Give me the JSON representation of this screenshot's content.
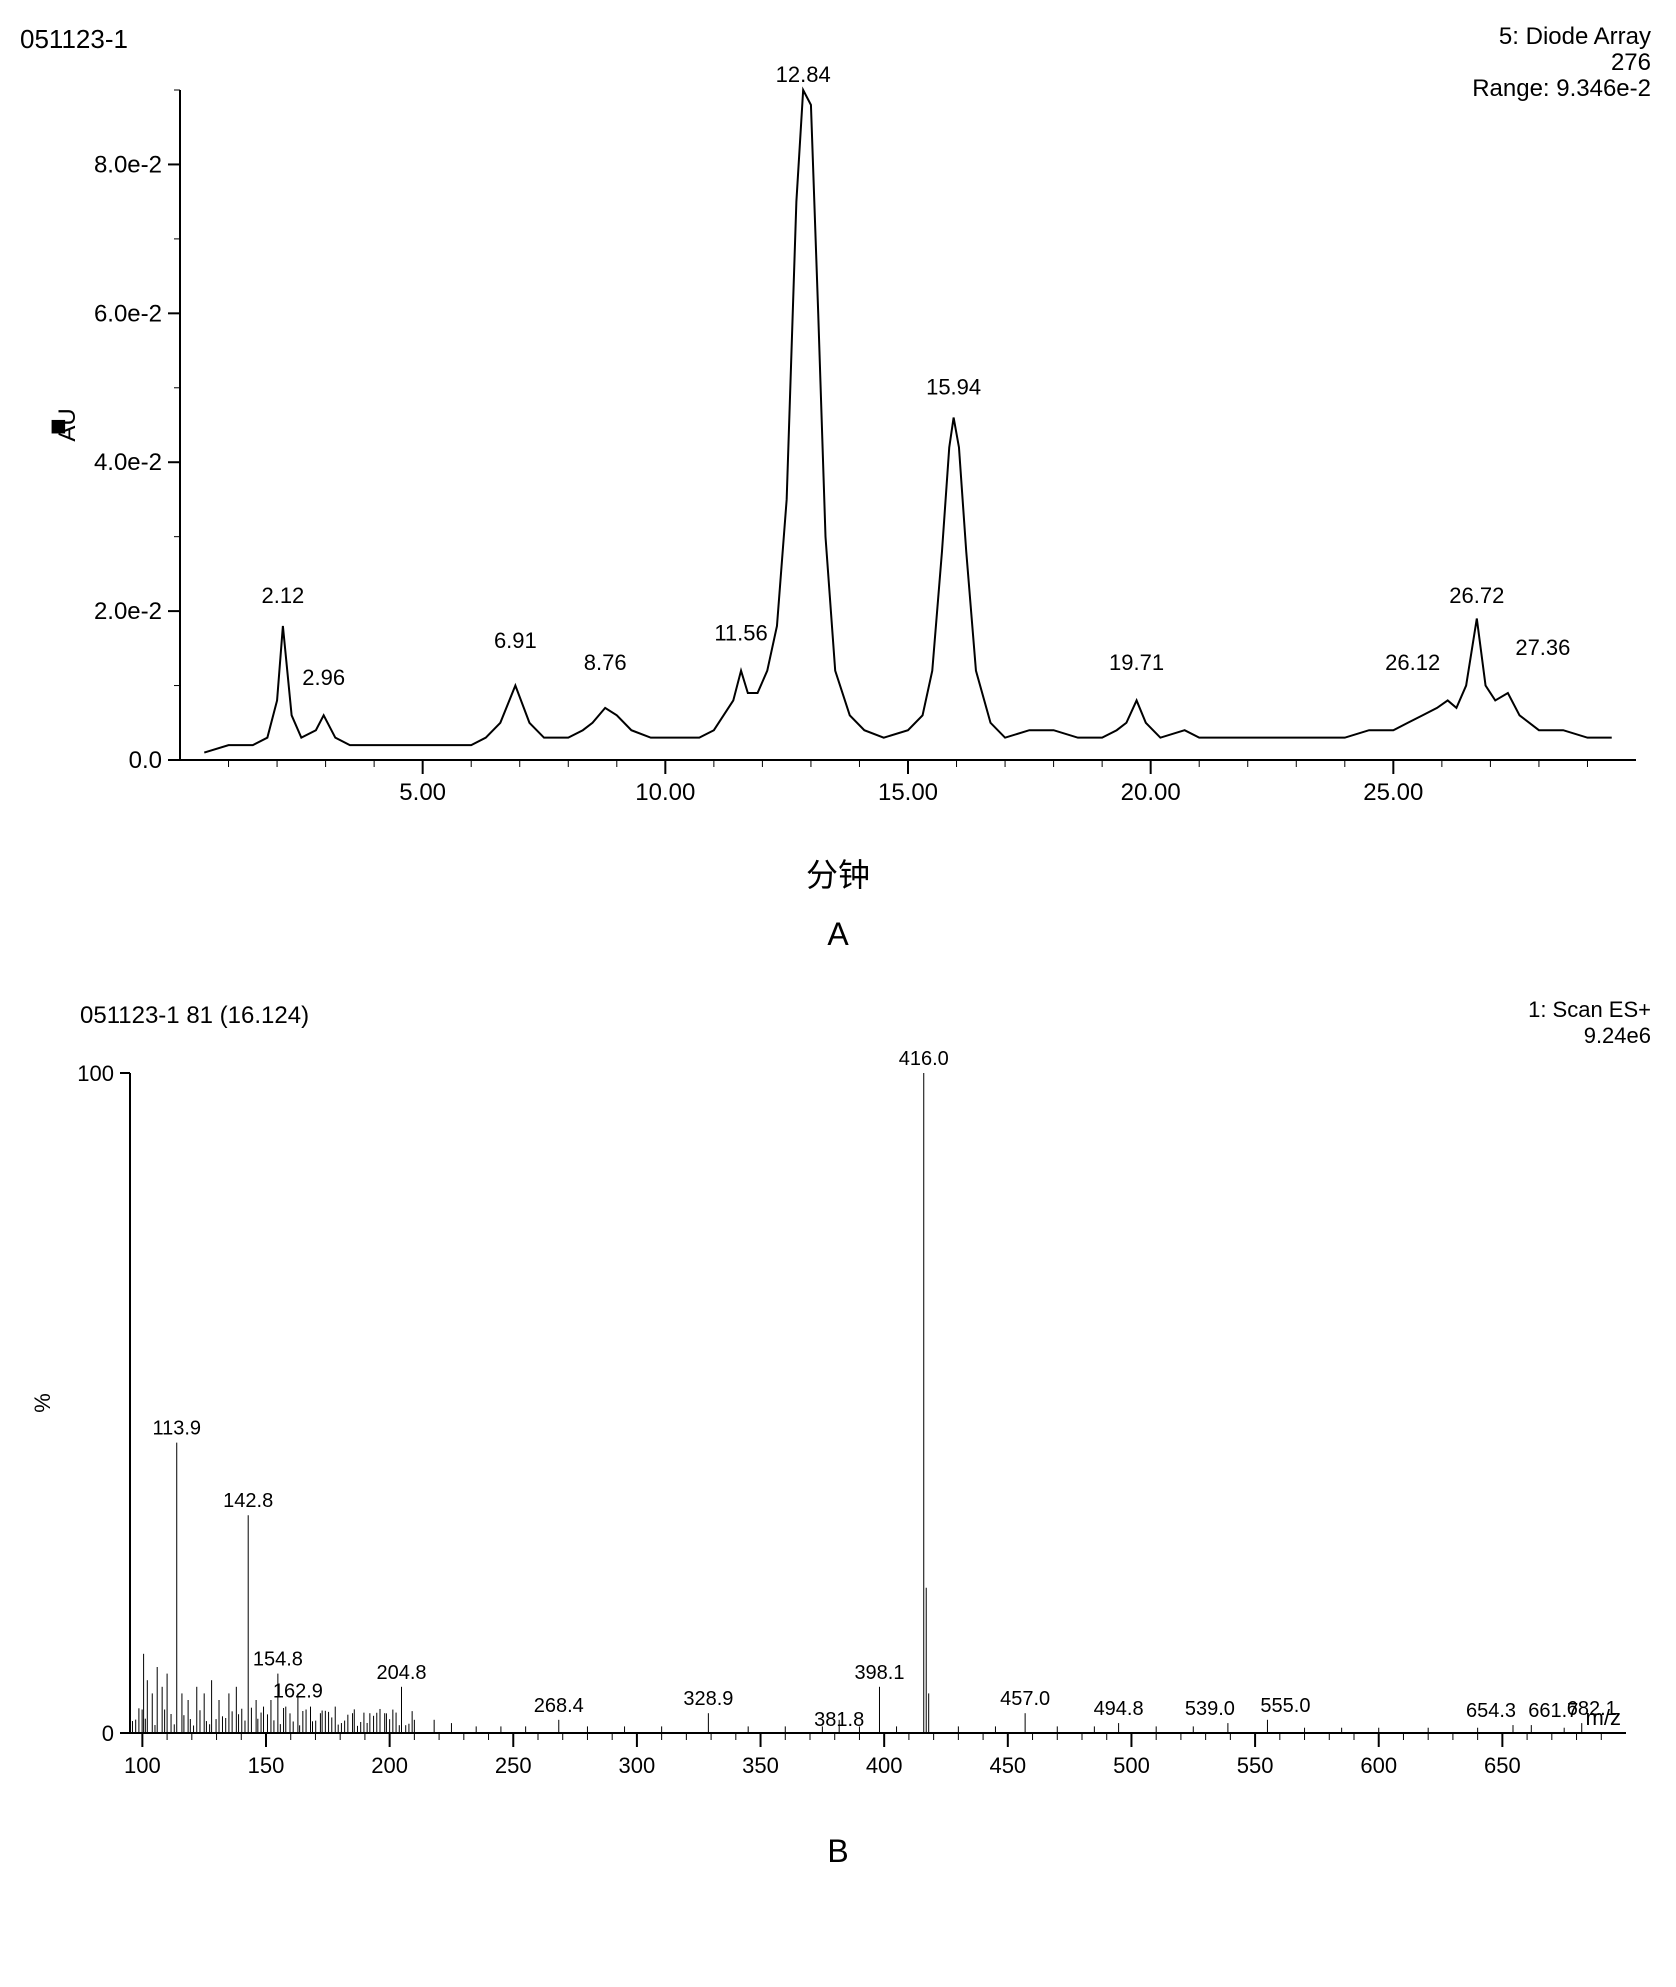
{
  "chartA": {
    "type": "chromatogram-line",
    "sample_id": "051123-1",
    "detector_line1": "5: Diode Array",
    "detector_line2": "276",
    "detector_range": "Range: 9.346e-2",
    "ylabel_icon": "■",
    "ylabel": "AU",
    "xlabel": "分钟",
    "panel_label": "A",
    "xlim": [
      0,
      30
    ],
    "ylim": [
      0,
      0.09
    ],
    "xtick_major": [
      5.0,
      10.0,
      15.0,
      20.0,
      25.0
    ],
    "ytick_labels": [
      "0.0",
      "2.0e-2",
      "4.0e-2",
      "6.0e-2",
      "8.0e-2"
    ],
    "ytick_values": [
      0,
      0.02,
      0.04,
      0.06,
      0.08
    ],
    "line_color": "#000000",
    "line_width": 2,
    "background_color": "#ffffff",
    "tick_color": "#000000",
    "title_fontsize": 26,
    "label_fontsize": 24,
    "tick_fontsize": 24,
    "peak_labels": [
      {
        "x": 2.12,
        "y_offset": 0.02,
        "text": "2.12"
      },
      {
        "x": 2.96,
        "y_offset": 0.009,
        "text": "2.96"
      },
      {
        "x": 6.91,
        "y_offset": 0.014,
        "text": "6.91"
      },
      {
        "x": 8.76,
        "y_offset": 0.011,
        "text": "8.76"
      },
      {
        "x": 11.56,
        "y_offset": 0.015,
        "text": "11.56"
      },
      {
        "x": 12.84,
        "y_offset": 0.094,
        "text": "12.84"
      },
      {
        "x": 15.94,
        "y_offset": 0.048,
        "text": "15.94"
      },
      {
        "x": 19.71,
        "y_offset": 0.011,
        "text": "19.71"
      },
      {
        "x": 26.12,
        "y_offset": 0.011,
        "text": "26.12",
        "dx": -35
      },
      {
        "x": 26.72,
        "y_offset": 0.02,
        "text": "26.72"
      },
      {
        "x": 27.36,
        "y_offset": 0.013,
        "text": "27.36",
        "dx": 35
      }
    ],
    "trace": [
      [
        0.5,
        0.001
      ],
      [
        1.0,
        0.002
      ],
      [
        1.5,
        0.002
      ],
      [
        1.8,
        0.003
      ],
      [
        2.0,
        0.008
      ],
      [
        2.12,
        0.018
      ],
      [
        2.3,
        0.006
      ],
      [
        2.5,
        0.003
      ],
      [
        2.8,
        0.004
      ],
      [
        2.96,
        0.006
      ],
      [
        3.2,
        0.003
      ],
      [
        3.5,
        0.002
      ],
      [
        4.0,
        0.002
      ],
      [
        5.0,
        0.002
      ],
      [
        5.5,
        0.002
      ],
      [
        6.0,
        0.002
      ],
      [
        6.3,
        0.003
      ],
      [
        6.6,
        0.005
      ],
      [
        6.91,
        0.01
      ],
      [
        7.2,
        0.005
      ],
      [
        7.5,
        0.003
      ],
      [
        8.0,
        0.003
      ],
      [
        8.3,
        0.004
      ],
      [
        8.5,
        0.005
      ],
      [
        8.76,
        0.007
      ],
      [
        9.0,
        0.006
      ],
      [
        9.3,
        0.004
      ],
      [
        9.7,
        0.003
      ],
      [
        10.2,
        0.003
      ],
      [
        10.7,
        0.003
      ],
      [
        11.0,
        0.004
      ],
      [
        11.2,
        0.006
      ],
      [
        11.4,
        0.008
      ],
      [
        11.56,
        0.012
      ],
      [
        11.7,
        0.009
      ],
      [
        11.9,
        0.009
      ],
      [
        12.1,
        0.012
      ],
      [
        12.3,
        0.018
      ],
      [
        12.5,
        0.035
      ],
      [
        12.7,
        0.075
      ],
      [
        12.84,
        0.093
      ],
      [
        13.0,
        0.088
      ],
      [
        13.15,
        0.06
      ],
      [
        13.3,
        0.03
      ],
      [
        13.5,
        0.012
      ],
      [
        13.8,
        0.006
      ],
      [
        14.1,
        0.004
      ],
      [
        14.5,
        0.003
      ],
      [
        15.0,
        0.004
      ],
      [
        15.3,
        0.006
      ],
      [
        15.5,
        0.012
      ],
      [
        15.7,
        0.028
      ],
      [
        15.85,
        0.042
      ],
      [
        15.94,
        0.046
      ],
      [
        16.05,
        0.042
      ],
      [
        16.2,
        0.028
      ],
      [
        16.4,
        0.012
      ],
      [
        16.7,
        0.005
      ],
      [
        17.0,
        0.003
      ],
      [
        17.5,
        0.004
      ],
      [
        18.0,
        0.004
      ],
      [
        18.5,
        0.003
      ],
      [
        19.0,
        0.003
      ],
      [
        19.3,
        0.004
      ],
      [
        19.5,
        0.005
      ],
      [
        19.71,
        0.008
      ],
      [
        19.9,
        0.005
      ],
      [
        20.2,
        0.003
      ],
      [
        20.7,
        0.004
      ],
      [
        21.0,
        0.003
      ],
      [
        21.5,
        0.003
      ],
      [
        22.0,
        0.003
      ],
      [
        22.5,
        0.003
      ],
      [
        23.0,
        0.003
      ],
      [
        23.5,
        0.003
      ],
      [
        24.0,
        0.003
      ],
      [
        24.5,
        0.004
      ],
      [
        25.0,
        0.004
      ],
      [
        25.3,
        0.005
      ],
      [
        25.6,
        0.006
      ],
      [
        25.9,
        0.007
      ],
      [
        26.12,
        0.008
      ],
      [
        26.3,
        0.007
      ],
      [
        26.5,
        0.01
      ],
      [
        26.72,
        0.019
      ],
      [
        26.9,
        0.01
      ],
      [
        27.1,
        0.008
      ],
      [
        27.36,
        0.009
      ],
      [
        27.6,
        0.006
      ],
      [
        28.0,
        0.004
      ],
      [
        28.5,
        0.004
      ],
      [
        29.0,
        0.003
      ],
      [
        29.5,
        0.003
      ]
    ]
  },
  "chartB": {
    "type": "mass-spectrum",
    "sample_id": "051123-1  81 (16.124)",
    "scan_line1": "1: Scan ES+",
    "scan_line2": "9.24e6",
    "ylabel": "%",
    "xlabel": "m/z",
    "panel_label": "B",
    "xlim": [
      95,
      700
    ],
    "ylim": [
      0,
      100
    ],
    "xtick_major": [
      100,
      150,
      200,
      250,
      300,
      350,
      400,
      450,
      500,
      550,
      600,
      650
    ],
    "ytick_major": [
      0,
      100
    ],
    "line_color": "#000000",
    "line_width": 1,
    "background_color": "#ffffff",
    "title_fontsize": 24,
    "label_fontsize": 22,
    "tick_fontsize": 22,
    "peaks": [
      {
        "mz": 100.5,
        "intensity": 12
      },
      {
        "mz": 102.0,
        "intensity": 8
      },
      {
        "mz": 104.0,
        "intensity": 6
      },
      {
        "mz": 106.0,
        "intensity": 10
      },
      {
        "mz": 108.0,
        "intensity": 7
      },
      {
        "mz": 110.0,
        "intensity": 9
      },
      {
        "mz": 113.9,
        "intensity": 44,
        "label": "113.9"
      },
      {
        "mz": 116.0,
        "intensity": 6
      },
      {
        "mz": 118.5,
        "intensity": 5
      },
      {
        "mz": 122.0,
        "intensity": 7
      },
      {
        "mz": 125.0,
        "intensity": 6
      },
      {
        "mz": 128.0,
        "intensity": 8
      },
      {
        "mz": 131.0,
        "intensity": 5
      },
      {
        "mz": 135.0,
        "intensity": 6
      },
      {
        "mz": 138.0,
        "intensity": 7
      },
      {
        "mz": 142.8,
        "intensity": 33,
        "label": "142.8"
      },
      {
        "mz": 146.0,
        "intensity": 5
      },
      {
        "mz": 149.0,
        "intensity": 4
      },
      {
        "mz": 152.0,
        "intensity": 5
      },
      {
        "mz": 154.8,
        "intensity": 9,
        "label": "154.8"
      },
      {
        "mz": 158.0,
        "intensity": 4
      },
      {
        "mz": 162.9,
        "intensity": 6,
        "label": "162.9",
        "label_dy": 12
      },
      {
        "mz": 168.0,
        "intensity": 4
      },
      {
        "mz": 172.0,
        "intensity": 3
      },
      {
        "mz": 178.0,
        "intensity": 4
      },
      {
        "mz": 185.0,
        "intensity": 3
      },
      {
        "mz": 192.0,
        "intensity": 3
      },
      {
        "mz": 198.0,
        "intensity": 3
      },
      {
        "mz": 204.8,
        "intensity": 7,
        "label": "204.8"
      },
      {
        "mz": 210.0,
        "intensity": 2
      },
      {
        "mz": 218.0,
        "intensity": 2
      },
      {
        "mz": 225.0,
        "intensity": 1.5
      },
      {
        "mz": 235.0,
        "intensity": 1
      },
      {
        "mz": 245.0,
        "intensity": 1
      },
      {
        "mz": 255.0,
        "intensity": 1
      },
      {
        "mz": 268.4,
        "intensity": 2,
        "label": "268.4"
      },
      {
        "mz": 280.0,
        "intensity": 1
      },
      {
        "mz": 295.0,
        "intensity": 1
      },
      {
        "mz": 310.0,
        "intensity": 1
      },
      {
        "mz": 328.9,
        "intensity": 3,
        "label": "328.9"
      },
      {
        "mz": 345.0,
        "intensity": 1
      },
      {
        "mz": 360.0,
        "intensity": 1
      },
      {
        "mz": 375.0,
        "intensity": 1
      },
      {
        "mz": 381.8,
        "intensity": 2,
        "label": "381.8",
        "label_dy": 14
      },
      {
        "mz": 390.0,
        "intensity": 1
      },
      {
        "mz": 398.1,
        "intensity": 7,
        "label": "398.1"
      },
      {
        "mz": 405.0,
        "intensity": 1
      },
      {
        "mz": 416.0,
        "intensity": 100,
        "label": "416.0"
      },
      {
        "mz": 417.0,
        "intensity": 22
      },
      {
        "mz": 418.0,
        "intensity": 6
      },
      {
        "mz": 430.0,
        "intensity": 1
      },
      {
        "mz": 445.0,
        "intensity": 1
      },
      {
        "mz": 457.0,
        "intensity": 3,
        "label": "457.0"
      },
      {
        "mz": 470.0,
        "intensity": 1
      },
      {
        "mz": 485.0,
        "intensity": 1
      },
      {
        "mz": 494.8,
        "intensity": 1.5,
        "label": "494.8"
      },
      {
        "mz": 510.0,
        "intensity": 1
      },
      {
        "mz": 525.0,
        "intensity": 1
      },
      {
        "mz": 539.0,
        "intensity": 1.5,
        "label": "539.0",
        "label_dx": -18
      },
      {
        "mz": 555.0,
        "intensity": 2,
        "label": "555.0",
        "label_dx": 18
      },
      {
        "mz": 570.0,
        "intensity": 0.8
      },
      {
        "mz": 585.0,
        "intensity": 0.8
      },
      {
        "mz": 600.0,
        "intensity": 0.8
      },
      {
        "mz": 620.0,
        "intensity": 0.8
      },
      {
        "mz": 640.0,
        "intensity": 0.8
      },
      {
        "mz": 654.3,
        "intensity": 1.2,
        "label": "654.3",
        "label_dx": -22
      },
      {
        "mz": 661.7,
        "intensity": 1.2,
        "label": "661.7",
        "label_dx": 22
      },
      {
        "mz": 675.0,
        "intensity": 0.8
      },
      {
        "mz": 682.1,
        "intensity": 1.5,
        "label": "682.1",
        "label_dx": 10
      }
    ]
  }
}
